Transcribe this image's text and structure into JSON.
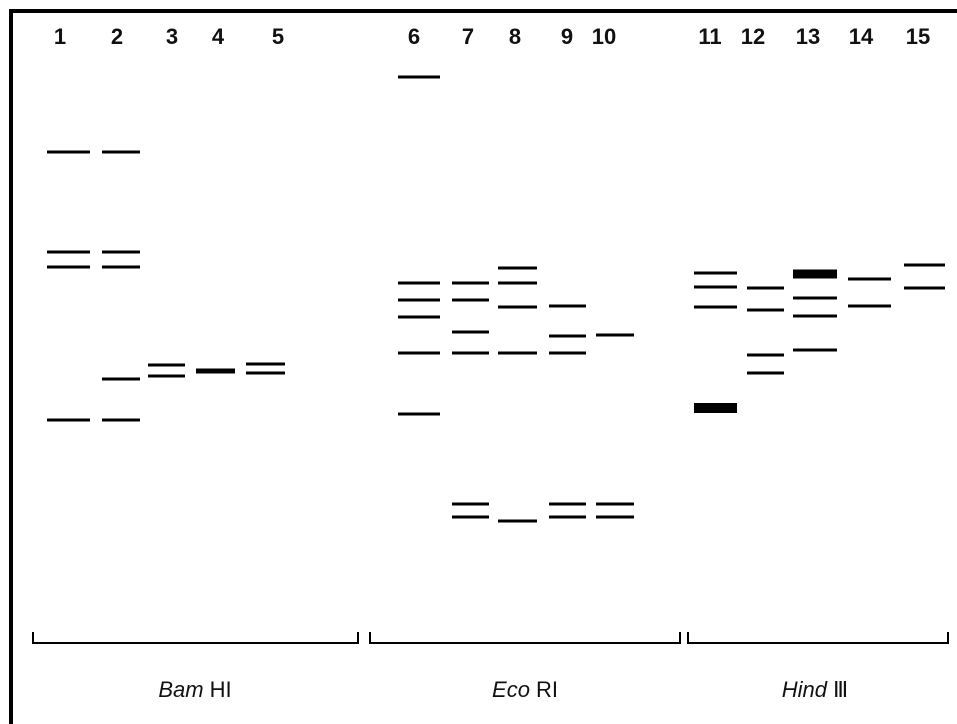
{
  "lanes": [
    "1",
    "2",
    "3",
    "4",
    "5",
    "6",
    "7",
    "8",
    "9",
    "10",
    "11",
    "12",
    "13",
    "14",
    "15"
  ],
  "enzymes": [
    {
      "italic": "Bam",
      "rest": "HI"
    },
    {
      "italic": "Eco",
      "rest": "RI"
    },
    {
      "italic": "Hind",
      "rest": "Ⅲ"
    }
  ]
}
